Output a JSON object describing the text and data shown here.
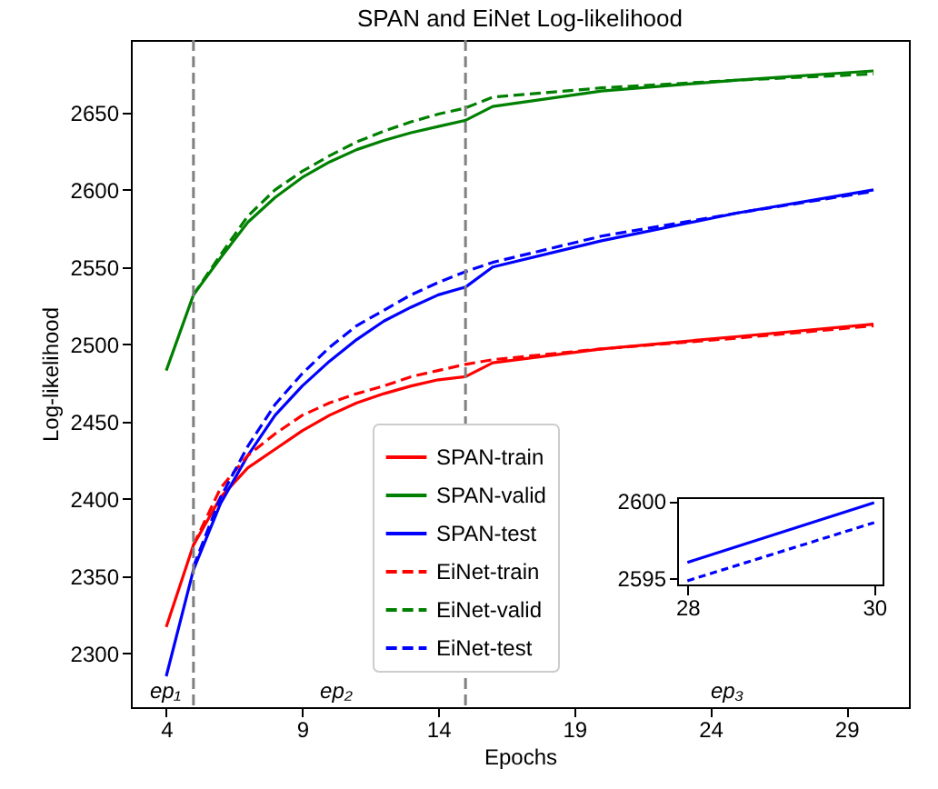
{
  "chart_data": [
    {
      "type": "line",
      "title": "SPAN and EiNet Log-likelihood",
      "xlabel": "Epochs",
      "ylabel": "Log-likelihood",
      "x": [
        4,
        5,
        6,
        7,
        8,
        9,
        10,
        11,
        12,
        13,
        14,
        15,
        16,
        20,
        25,
        30
      ],
      "xlim": [
        2.7,
        31.3
      ],
      "xticks": [
        4,
        9,
        14,
        19,
        24,
        29
      ],
      "ylim": [
        2265,
        2697
      ],
      "yticks": [
        2300,
        2350,
        2400,
        2450,
        2500,
        2550,
        2600,
        2650
      ],
      "grid": false,
      "legend": "bottom",
      "marker": "none",
      "series": [
        {
          "name": "SPAN-train",
          "color": "#ff0000",
          "line_style": "solid",
          "values": [
            2317,
            2370,
            2401,
            2420,
            2432,
            2444,
            2454,
            2462,
            2468,
            2473,
            2477,
            2479,
            2488,
            2497,
            2505,
            2513
          ]
        },
        {
          "name": "SPAN-valid",
          "color": "#008000",
          "line_style": "solid",
          "values": [
            2483,
            2532,
            2556,
            2579,
            2595,
            2608,
            2618,
            2626,
            2632,
            2637,
            2641,
            2645,
            2654,
            2664,
            2671,
            2677
          ]
        },
        {
          "name": "SPAN-test",
          "color": "#0000ff",
          "line_style": "solid",
          "values": [
            2285,
            2354,
            2397,
            2428,
            2454,
            2473,
            2489,
            2503,
            2515,
            2524,
            2532,
            2537,
            2550,
            2567,
            2585,
            2600
          ]
        },
        {
          "name": "EiNet-train",
          "color": "#ff0000",
          "line_style": "dashed",
          "values": [
            null,
            2370,
            2407,
            2428,
            2442,
            2454,
            2462,
            2468,
            2473,
            2479,
            2483,
            2487,
            2490,
            2497,
            2504,
            2512
          ]
        },
        {
          "name": "EiNet-valid",
          "color": "#008000",
          "line_style": "dashed",
          "values": [
            null,
            2532,
            2558,
            2583,
            2600,
            2612,
            2622,
            2631,
            2638,
            2644,
            2649,
            2653,
            2660,
            2666,
            2671,
            2675
          ]
        },
        {
          "name": "EiNet-test",
          "color": "#0000ff",
          "line_style": "dashed",
          "values": [
            null,
            2356,
            2401,
            2434,
            2461,
            2481,
            2498,
            2512,
            2522,
            2532,
            2540,
            2547,
            2553,
            2570,
            2585,
            2599
          ]
        }
      ],
      "ref_lines": [
        {
          "axis": "x",
          "value": 5,
          "color": "#808080",
          "line_style": "dashed"
        },
        {
          "axis": "x",
          "value": 15,
          "color": "#808080",
          "line_style": "dashed"
        }
      ],
      "annotations": [
        "ep₁",
        "ep₂",
        "ep₃"
      ]
    },
    {
      "type": "line",
      "x": [
        28,
        30
      ],
      "xlim": [
        27.9,
        30.1
      ],
      "xticks": [
        28,
        30
      ],
      "ylim": [
        2594.5,
        2600.2
      ],
      "yticks": [
        2595,
        2600
      ],
      "grid": false,
      "marker": "none",
      "series": [
        {
          "color": "#0000ff",
          "line_style": "solid",
          "values": [
            2596,
            2599.9
          ]
        },
        {
          "color": "#0000ff",
          "line_style": "dashed",
          "values": [
            2594.8,
            2598.6
          ]
        }
      ]
    }
  ]
}
